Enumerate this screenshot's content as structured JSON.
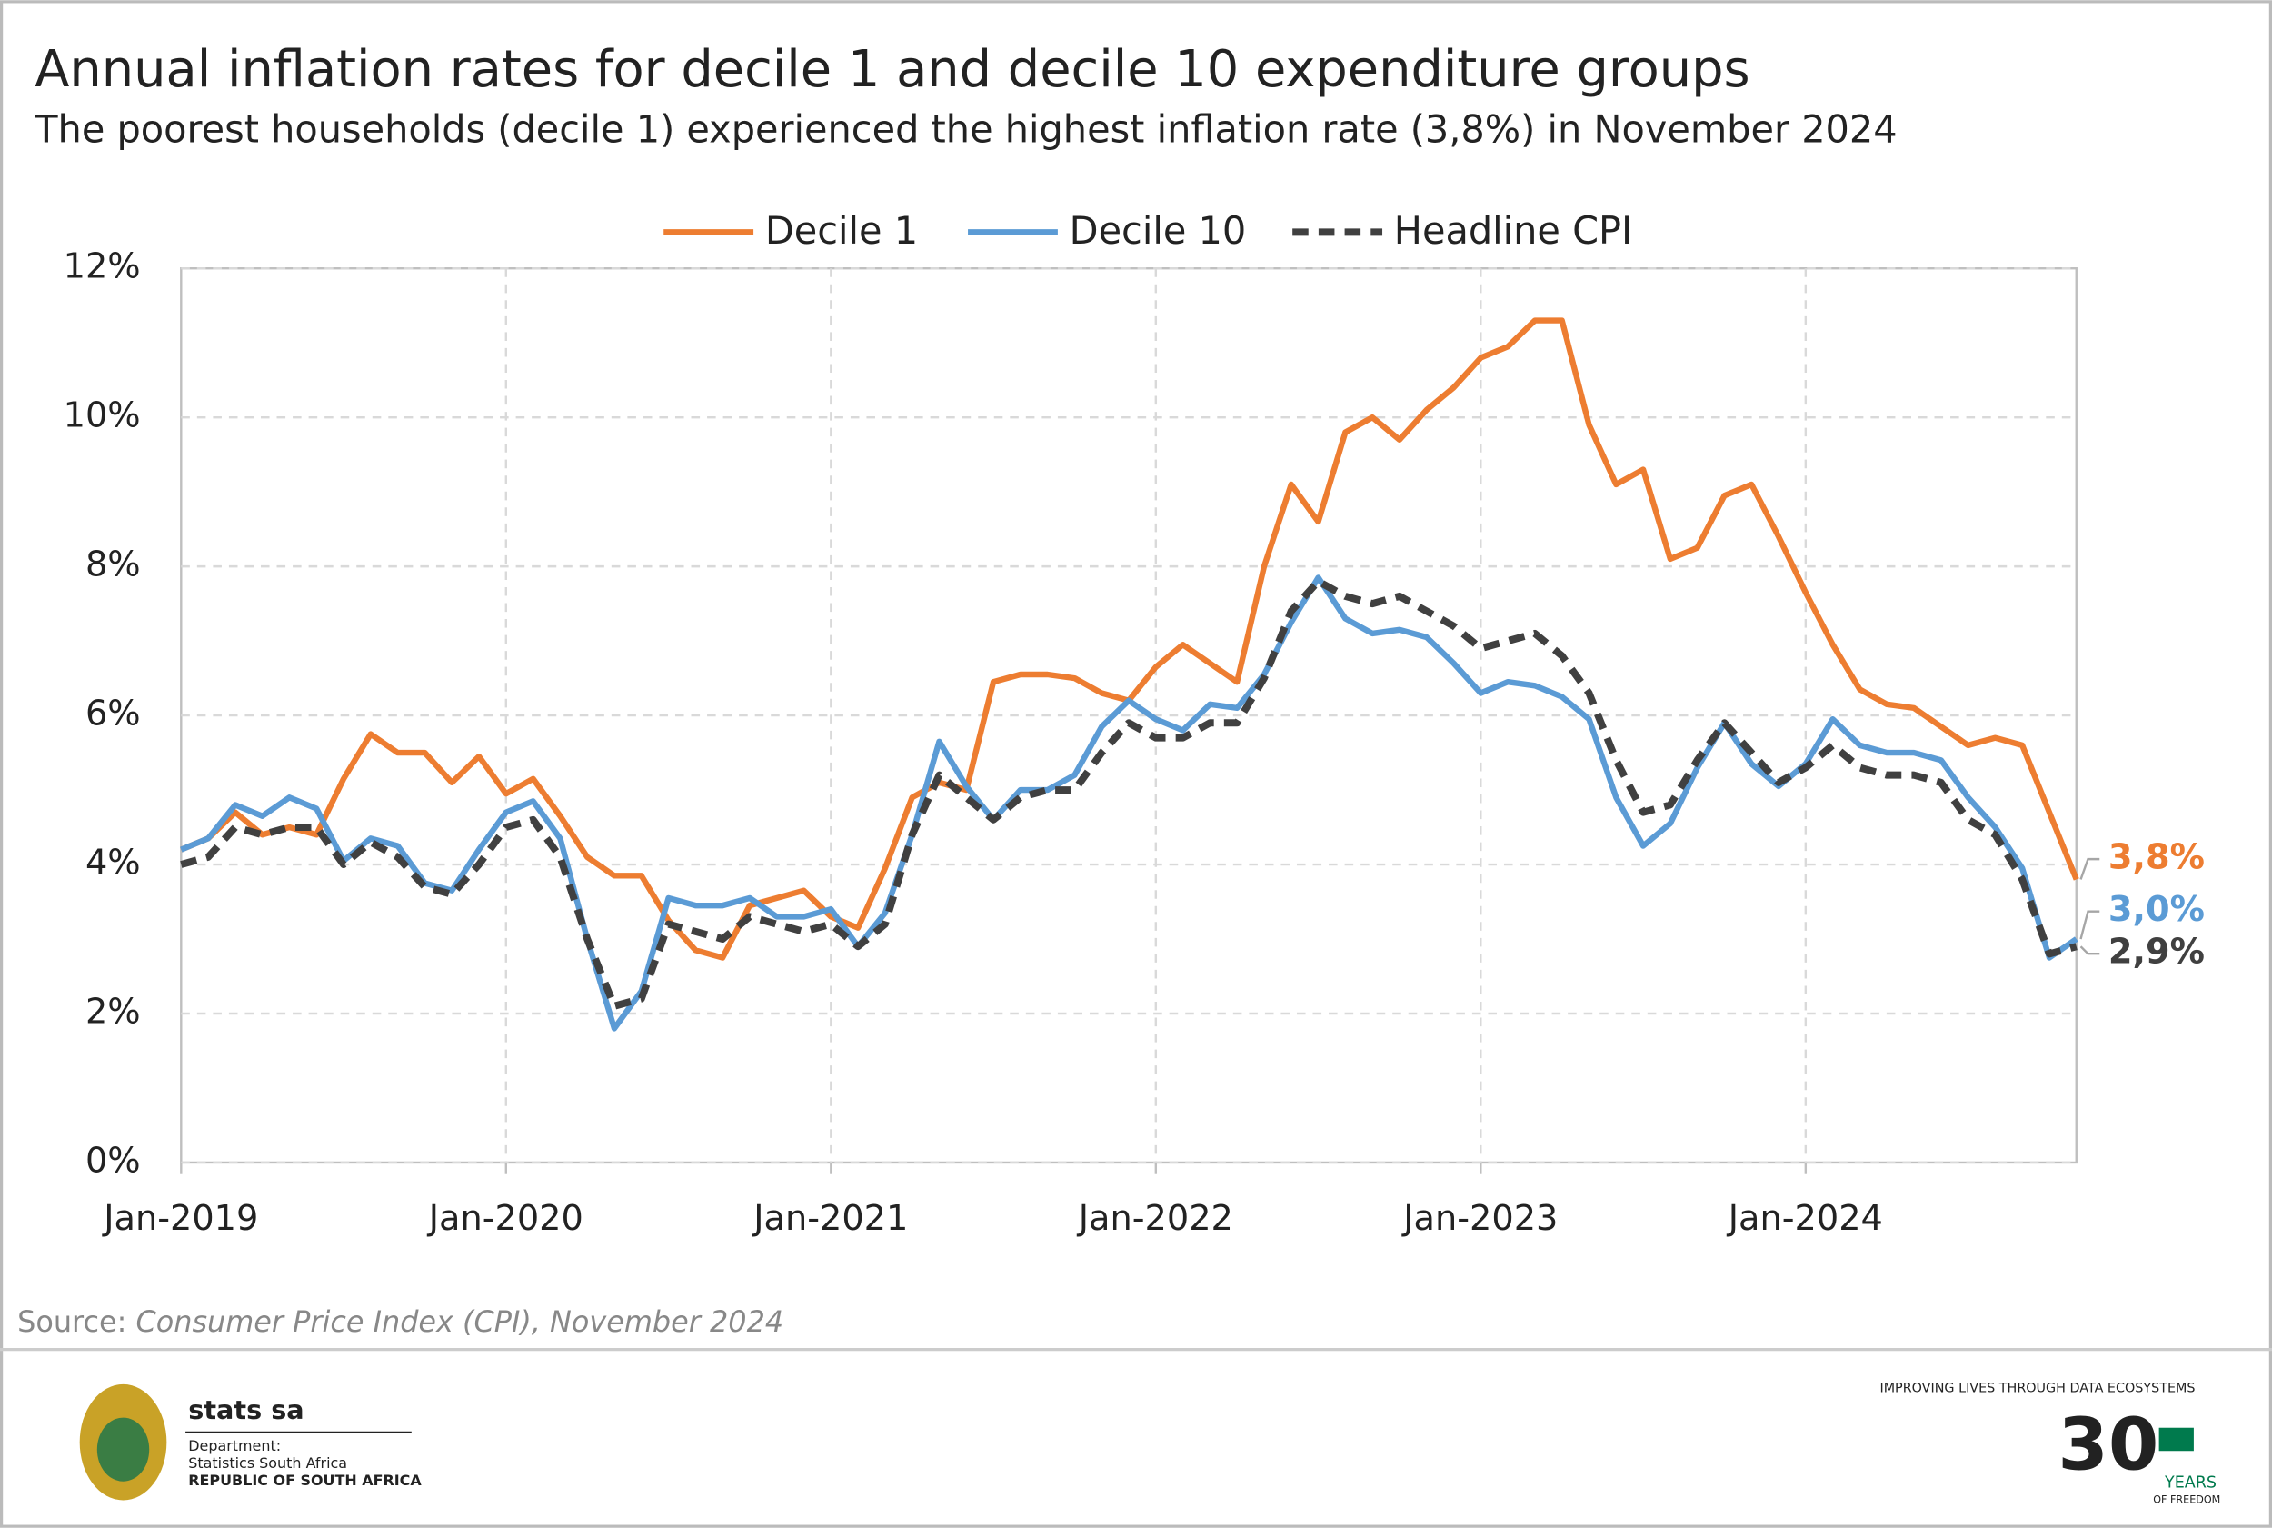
{
  "chart_data": {
    "type": "line",
    "title": "Annual inflation rates for decile 1 and decile 10 expenditure groups",
    "subtitle": "The poorest households (decile 1) experienced the highest inflation rate (3,8%) in November 2024",
    "categories": [
      "Jan-2019",
      null,
      null,
      null,
      null,
      null,
      null,
      null,
      null,
      null,
      null,
      null,
      "Jan-2020",
      null,
      null,
      null,
      null,
      null,
      null,
      null,
      null,
      null,
      null,
      null,
      "Jan-2021",
      null,
      null,
      null,
      null,
      null,
      null,
      null,
      null,
      null,
      null,
      null,
      "Jan-2022",
      null,
      null,
      null,
      null,
      null,
      null,
      null,
      null,
      null,
      null,
      null,
      "Jan-2023",
      null,
      null,
      null,
      null,
      null,
      null,
      null,
      null,
      null,
      null,
      null,
      "Jan-2024",
      null,
      null,
      null,
      null,
      null,
      null,
      null,
      null,
      null,
      null
    ],
    "series": [
      {
        "name": "Decile 1",
        "color": "#ed7d31",
        "dashed": false,
        "values": [
          4.2,
          4.35,
          4.7,
          4.4,
          4.5,
          4.4,
          5.15,
          5.75,
          5.5,
          5.5,
          5.1,
          5.45,
          4.95,
          5.15,
          4.65,
          4.1,
          3.85,
          3.85,
          3.25,
          2.85,
          2.75,
          3.45,
          3.55,
          3.65,
          3.3,
          3.15,
          3.95,
          4.9,
          5.1,
          5.0,
          6.45,
          6.55,
          6.55,
          6.5,
          6.3,
          6.2,
          6.65,
          6.95,
          6.7,
          6.45,
          8.0,
          9.1,
          8.6,
          9.8,
          10.0,
          9.7,
          10.1,
          10.4,
          10.8,
          10.95,
          11.3,
          11.3,
          9.9,
          9.1,
          9.3,
          8.1,
          8.25,
          8.95,
          9.1,
          8.4,
          7.65,
          6.95,
          6.35,
          6.15,
          6.1,
          5.85,
          5.6,
          5.7,
          5.6,
          4.7,
          3.8
        ],
        "value_labels": [
          null,
          null,
          null,
          null,
          null,
          null,
          null,
          null,
          null,
          null,
          null,
          null,
          null,
          null,
          null,
          null,
          null,
          null,
          null,
          null,
          null,
          null,
          null,
          null,
          null,
          null,
          null,
          null,
          null,
          null,
          null,
          null,
          null,
          null,
          null,
          null,
          null,
          null,
          null,
          null,
          null,
          null,
          null,
          null,
          null,
          null,
          null,
          null,
          null,
          null,
          null,
          null,
          null,
          null,
          null,
          null,
          null,
          null,
          null,
          null,
          null,
          null,
          null,
          null,
          null,
          null,
          null,
          null,
          null,
          null,
          "3,8%"
        ]
      },
      {
        "name": "Decile 10",
        "color": "#5b9bd5",
        "dashed": false,
        "values": [
          4.2,
          4.35,
          4.8,
          4.65,
          4.9,
          4.75,
          4.05,
          4.35,
          4.25,
          3.75,
          3.65,
          4.2,
          4.7,
          4.85,
          4.35,
          3.0,
          1.8,
          2.3,
          3.55,
          3.45,
          3.45,
          3.55,
          3.3,
          3.3,
          3.4,
          2.9,
          3.35,
          4.4,
          5.65,
          5.05,
          4.6,
          5.0,
          5.0,
          5.2,
          5.85,
          6.2,
          5.95,
          5.8,
          6.15,
          6.1,
          6.55,
          7.25,
          7.85,
          7.3,
          7.1,
          7.15,
          7.05,
          6.7,
          6.3,
          6.45,
          6.4,
          6.25,
          5.95,
          4.9,
          4.25,
          4.55,
          5.3,
          5.9,
          5.35,
          5.05,
          5.35,
          5.95,
          5.6,
          5.5,
          5.5,
          5.4,
          4.9,
          4.5,
          3.95,
          2.75,
          3.0
        ],
        "value_labels": [
          null,
          null,
          null,
          null,
          null,
          null,
          null,
          null,
          null,
          null,
          null,
          null,
          null,
          null,
          null,
          null,
          null,
          null,
          null,
          null,
          null,
          null,
          null,
          null,
          null,
          null,
          null,
          null,
          null,
          null,
          null,
          null,
          null,
          null,
          null,
          null,
          null,
          null,
          null,
          null,
          null,
          null,
          null,
          null,
          null,
          null,
          null,
          null,
          null,
          null,
          null,
          null,
          null,
          null,
          null,
          null,
          null,
          null,
          null,
          null,
          null,
          null,
          null,
          null,
          null,
          null,
          null,
          null,
          null,
          null,
          "3,0%"
        ]
      },
      {
        "name": "Headline CPI",
        "color": "#404040",
        "dashed": true,
        "values": [
          4.0,
          4.1,
          4.5,
          4.4,
          4.5,
          4.5,
          4.0,
          4.3,
          4.1,
          3.7,
          3.6,
          4.0,
          4.5,
          4.6,
          4.1,
          3.0,
          2.1,
          2.2,
          3.2,
          3.1,
          3.0,
          3.3,
          3.2,
          3.1,
          3.2,
          2.9,
          3.2,
          4.4,
          5.2,
          4.9,
          4.6,
          4.9,
          5.0,
          5.0,
          5.5,
          5.9,
          5.7,
          5.7,
          5.9,
          5.9,
          6.5,
          7.4,
          7.8,
          7.6,
          7.5,
          7.6,
          7.4,
          7.2,
          6.9,
          7.0,
          7.1,
          6.8,
          6.3,
          5.4,
          4.7,
          4.8,
          5.4,
          5.9,
          5.5,
          5.1,
          5.3,
          5.6,
          5.3,
          5.2,
          5.2,
          5.1,
          4.6,
          4.4,
          3.8,
          2.8,
          2.9
        ],
        "value_labels": [
          null,
          null,
          null,
          null,
          null,
          null,
          null,
          null,
          null,
          null,
          null,
          null,
          null,
          null,
          null,
          null,
          null,
          null,
          null,
          null,
          null,
          null,
          null,
          null,
          null,
          null,
          null,
          null,
          null,
          null,
          null,
          null,
          null,
          null,
          null,
          null,
          null,
          null,
          null,
          null,
          null,
          null,
          null,
          null,
          null,
          null,
          null,
          null,
          null,
          null,
          null,
          null,
          null,
          null,
          null,
          null,
          null,
          null,
          null,
          null,
          null,
          null,
          null,
          null,
          null,
          null,
          null,
          null,
          null,
          null,
          "2,9%"
        ]
      }
    ],
    "ylim": [
      0,
      12
    ],
    "yticks": [
      {
        "value": 0,
        "label": "0%"
      },
      {
        "value": 2,
        "label": "2%"
      },
      {
        "value": 4,
        "label": "4%"
      },
      {
        "value": 6,
        "label": "6%"
      },
      {
        "value": 8,
        "label": "8%"
      },
      {
        "value": 10,
        "label": "10%"
      },
      {
        "value": 12,
        "label": "12%"
      }
    ],
    "grid": true,
    "legend": "top"
  },
  "source": {
    "prefix": "Source:",
    "text": "Consumer Price Index (CPI), November 2024"
  },
  "footer": {
    "brand": "stats sa",
    "department": "Department:",
    "agency": "Statistics South Africa",
    "country": "REPUBLIC OF SOUTH AFRICA",
    "slogan": "IMPROVING LIVES THROUGH DATA ECOSYSTEMS",
    "badge_number": "30",
    "badge_years": "YEARS",
    "badge_freedom": "OF FREEDOM"
  }
}
